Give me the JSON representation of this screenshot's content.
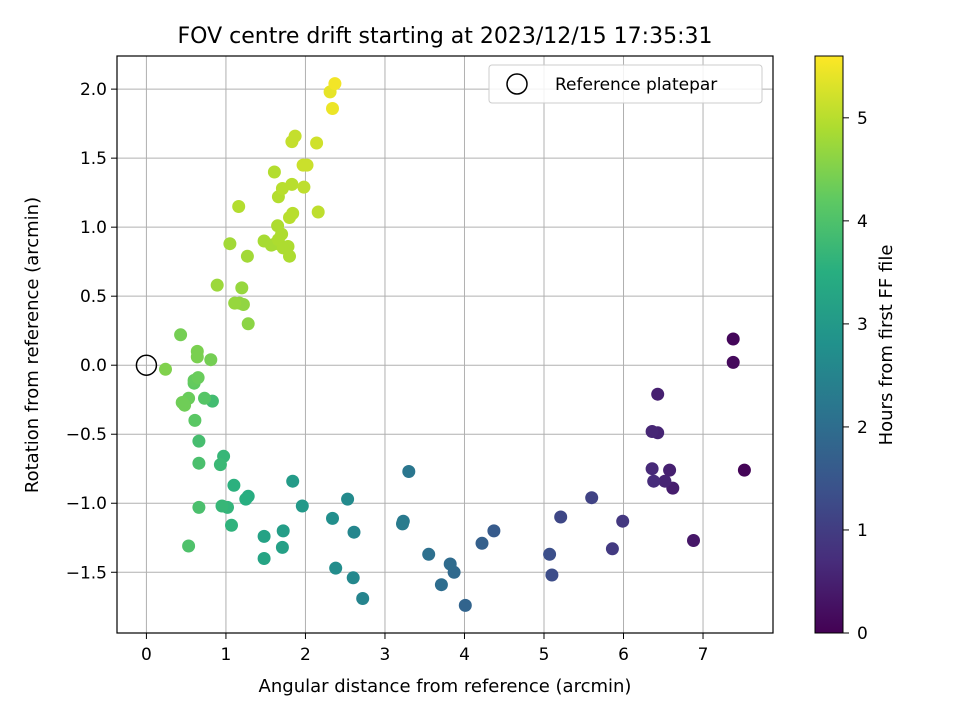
{
  "chart_data": {
    "type": "scatter",
    "title": "FOV centre drift starting at 2023/12/15 17:35:31",
    "xlabel": "Angular distance from reference (arcmin)",
    "ylabel": "Rotation from reference (arcmin)",
    "xlim": [
      -0.37,
      7.88
    ],
    "ylim": [
      -1.94,
      2.24
    ],
    "xticks": [
      0,
      1,
      2,
      3,
      4,
      5,
      6,
      7
    ],
    "xtick_labels": [
      "0",
      "1",
      "2",
      "3",
      "4",
      "5",
      "6",
      "7"
    ],
    "yticks": [
      -1.5,
      -1.0,
      -0.5,
      0.0,
      0.5,
      1.0,
      1.5,
      2.0
    ],
    "ytick_labels": [
      "−1.5",
      "−1.0",
      "−0.5",
      "0.0",
      "0.5",
      "1.0",
      "1.5",
      "2.0"
    ],
    "grid": true,
    "colormap": "viridis",
    "colorbar": {
      "label": "Hours from first FF file",
      "range": [
        0,
        5.6
      ],
      "ticks": [
        0,
        1,
        2,
        3,
        4,
        5
      ],
      "tick_labels": [
        "0",
        "1",
        "2",
        "3",
        "4",
        "5"
      ]
    },
    "legend": {
      "position": "top-right",
      "entries": [
        {
          "label": "Reference platepar",
          "marker": "open-circle"
        }
      ]
    },
    "reference_point": {
      "x": 0,
      "y": 0
    },
    "series": [
      {
        "points": [
          [
            7.52,
            -0.76,
            0.05
          ],
          [
            7.38,
            0.19,
            0.1
          ],
          [
            7.38,
            0.02,
            0.15
          ],
          [
            6.88,
            -1.27,
            0.35
          ],
          [
            6.62,
            -0.89,
            0.45
          ],
          [
            6.58,
            -0.76,
            0.5
          ],
          [
            6.52,
            -0.84,
            0.55
          ],
          [
            6.43,
            -0.21,
            0.5
          ],
          [
            6.43,
            -0.49,
            0.55
          ],
          [
            6.36,
            -0.48,
            0.6
          ],
          [
            6.36,
            -0.75,
            0.65
          ],
          [
            6.38,
            -0.84,
            0.7
          ],
          [
            5.99,
            -1.13,
            0.9
          ],
          [
            5.86,
            -1.33,
            0.95
          ],
          [
            5.6,
            -0.96,
            1.1
          ],
          [
            5.21,
            -1.1,
            1.2
          ],
          [
            5.1,
            -1.52,
            1.3
          ],
          [
            5.07,
            -1.37,
            1.35
          ],
          [
            4.37,
            -1.2,
            1.6
          ],
          [
            4.22,
            -1.29,
            1.7
          ],
          [
            4.01,
            -1.74,
            1.8
          ],
          [
            3.87,
            -1.5,
            1.9
          ],
          [
            3.82,
            -1.44,
            1.95
          ],
          [
            3.71,
            -1.59,
            2.0
          ],
          [
            3.55,
            -1.37,
            2.05
          ],
          [
            3.3,
            -0.77,
            2.2
          ],
          [
            3.23,
            -1.13,
            2.25
          ],
          [
            3.22,
            -1.15,
            2.3
          ],
          [
            2.72,
            -1.69,
            2.5
          ],
          [
            2.61,
            -1.21,
            2.55
          ],
          [
            2.6,
            -1.54,
            2.6
          ],
          [
            2.53,
            -0.97,
            2.65
          ],
          [
            2.38,
            -1.47,
            2.7
          ],
          [
            2.34,
            -1.11,
            2.75
          ],
          [
            1.96,
            -1.02,
            3.0
          ],
          [
            1.84,
            -0.84,
            3.05
          ],
          [
            1.72,
            -1.2,
            3.1
          ],
          [
            1.71,
            -1.32,
            3.15
          ],
          [
            1.48,
            -1.24,
            3.2
          ],
          [
            1.48,
            -1.4,
            3.25
          ],
          [
            1.28,
            -0.95,
            3.45
          ],
          [
            1.25,
            -0.97,
            3.5
          ],
          [
            1.1,
            -0.87,
            3.55
          ],
          [
            1.07,
            -1.16,
            3.6
          ],
          [
            1.02,
            -1.03,
            3.65
          ],
          [
            0.97,
            -0.66,
            3.7
          ],
          [
            0.95,
            -1.02,
            3.7
          ],
          [
            0.93,
            -0.72,
            3.75
          ],
          [
            0.83,
            -0.26,
            3.85
          ],
          [
            0.66,
            -0.55,
            3.9
          ],
          [
            0.66,
            -0.71,
            3.95
          ],
          [
            0.66,
            -1.03,
            3.95
          ],
          [
            0.53,
            -1.31,
            4.0
          ],
          [
            0.73,
            -0.24,
            4.1
          ],
          [
            0.61,
            -0.4,
            4.15
          ],
          [
            0.6,
            -0.13,
            4.2
          ],
          [
            0.6,
            -0.11,
            4.25
          ],
          [
            0.65,
            -0.09,
            4.3
          ],
          [
            0.53,
            -0.24,
            4.3
          ],
          [
            0.45,
            -0.27,
            4.35
          ],
          [
            0.48,
            -0.29,
            4.35
          ],
          [
            0.43,
            0.22,
            4.4
          ],
          [
            0.81,
            0.04,
            4.4
          ],
          [
            0.64,
            0.1,
            4.45
          ],
          [
            0.64,
            0.06,
            4.45
          ],
          [
            0.24,
            -0.03,
            4.5
          ],
          [
            1.28,
            0.3,
            4.6
          ],
          [
            1.17,
            0.45,
            4.65
          ],
          [
            1.22,
            0.44,
            4.65
          ],
          [
            1.11,
            0.45,
            4.7
          ],
          [
            1.2,
            0.56,
            4.7
          ],
          [
            0.89,
            0.58,
            4.75
          ],
          [
            1.05,
            0.88,
            4.8
          ],
          [
            1.27,
            0.79,
            4.8
          ],
          [
            1.48,
            0.9,
            4.85
          ],
          [
            1.57,
            0.87,
            4.85
          ],
          [
            1.62,
            0.88,
            4.85
          ],
          [
            1.66,
            0.91,
            4.9
          ],
          [
            1.72,
            0.85,
            4.9
          ],
          [
            1.78,
            0.86,
            4.9
          ],
          [
            1.8,
            0.79,
            4.9
          ],
          [
            1.7,
            0.95,
            4.9
          ],
          [
            1.65,
            1.01,
            4.9
          ],
          [
            1.16,
            1.15,
            4.95
          ],
          [
            1.61,
            1.4,
            4.95
          ],
          [
            1.66,
            1.22,
            4.95
          ],
          [
            1.71,
            1.28,
            5.0
          ],
          [
            1.8,
            1.07,
            5.0
          ],
          [
            1.84,
            1.1,
            5.0
          ],
          [
            1.83,
            1.31,
            5.0
          ],
          [
            1.98,
            1.29,
            5.05
          ],
          [
            2.16,
            1.11,
            5.05
          ],
          [
            1.83,
            1.62,
            5.1
          ],
          [
            1.87,
            1.66,
            5.1
          ],
          [
            1.97,
            1.45,
            5.15
          ],
          [
            2.02,
            1.45,
            5.15
          ],
          [
            2.14,
            1.61,
            5.2
          ],
          [
            2.31,
            1.98,
            5.4
          ],
          [
            2.34,
            1.86,
            5.45
          ],
          [
            2.37,
            2.04,
            5.5
          ]
        ]
      }
    ]
  }
}
